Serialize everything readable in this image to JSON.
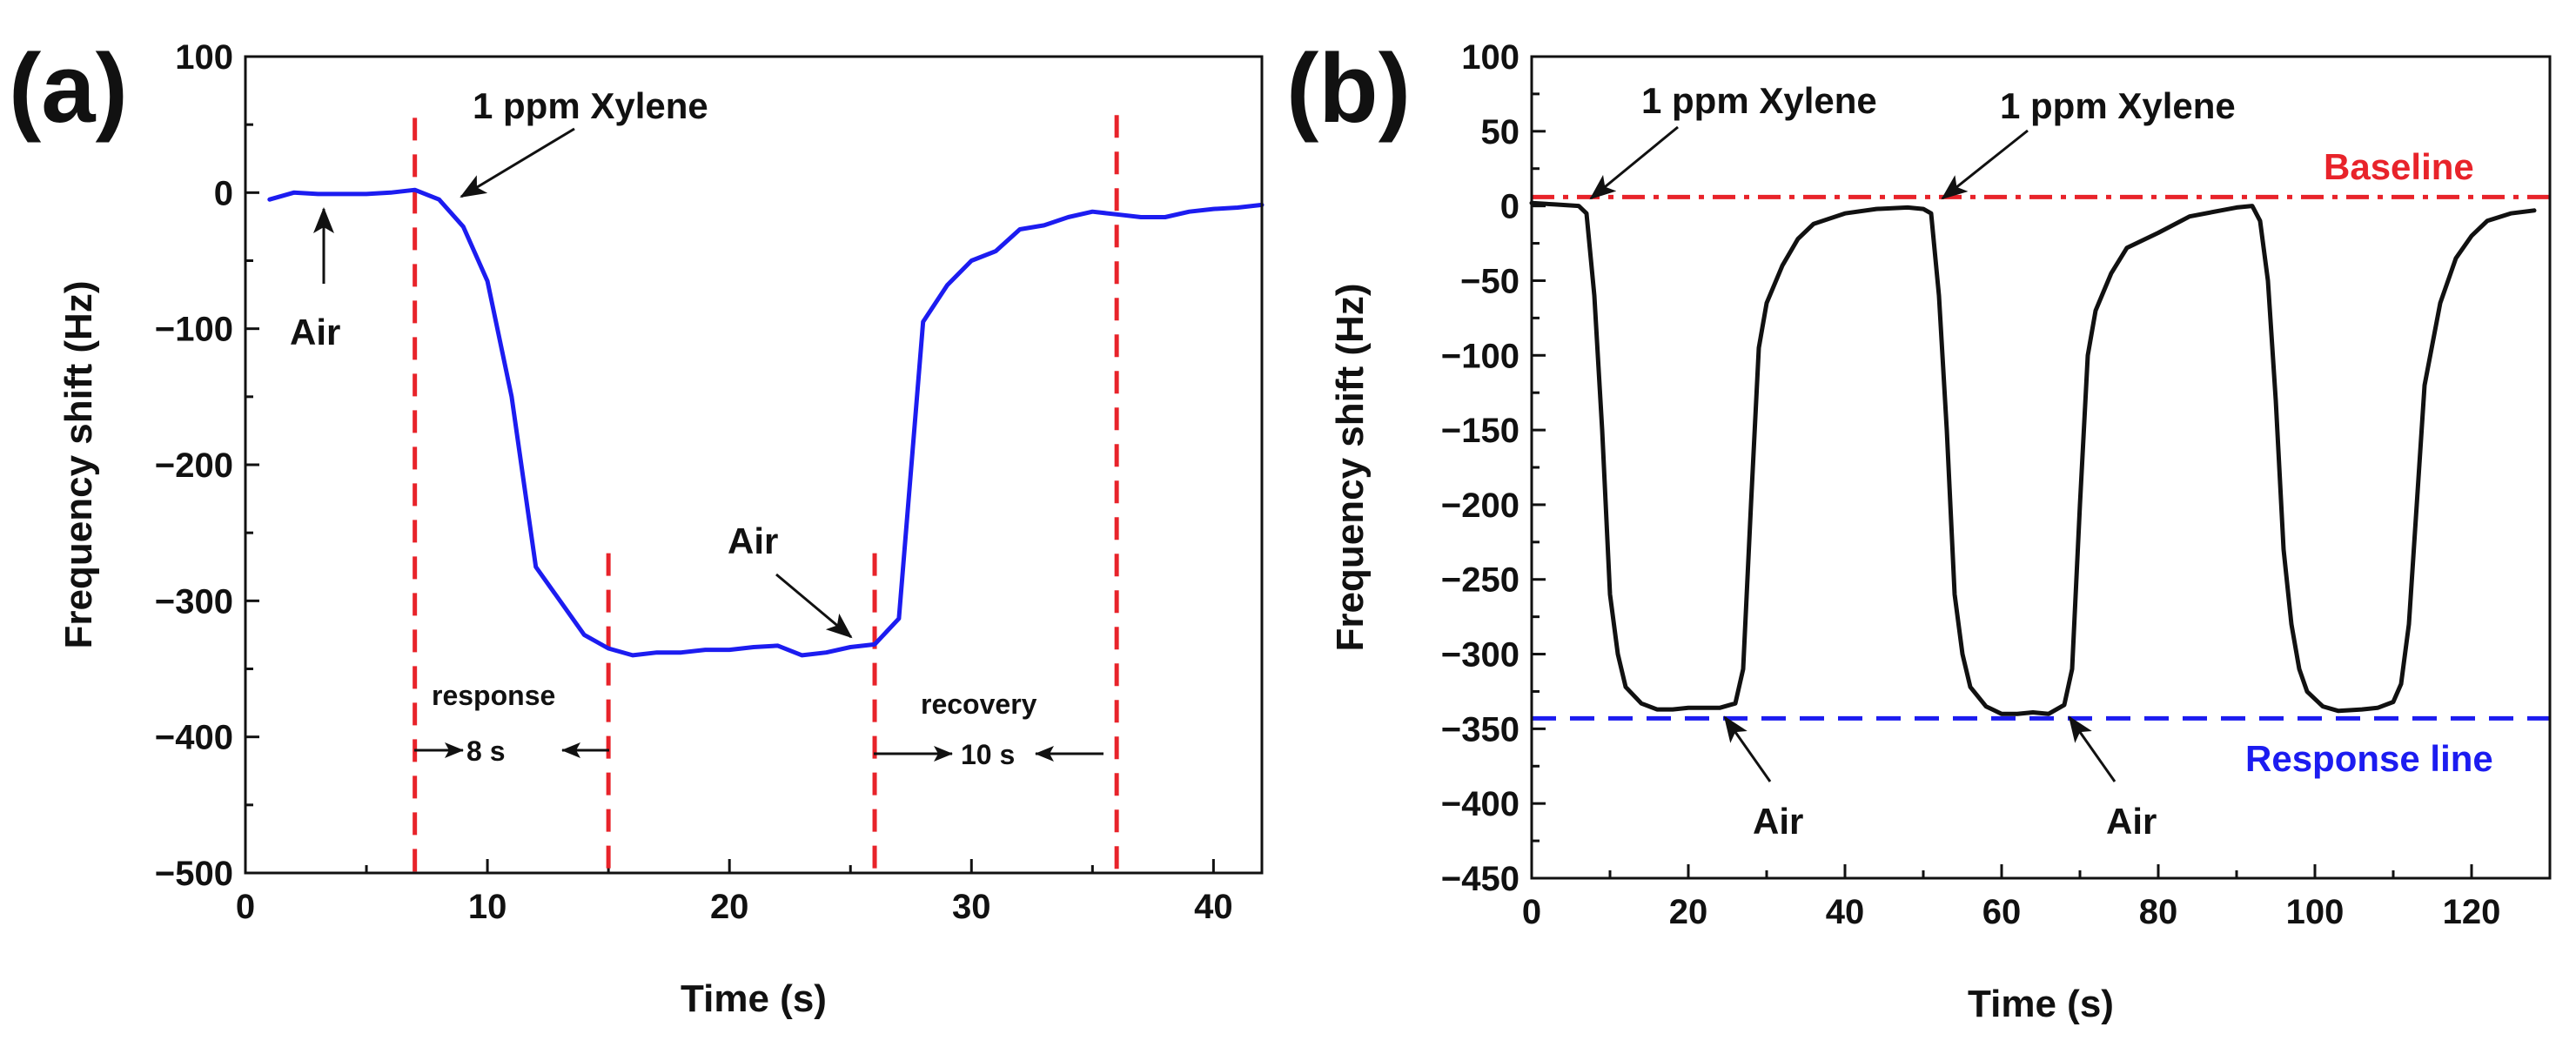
{
  "chart_data": [
    {
      "panel": "(a)",
      "type": "line",
      "xlabel": "Time (s)",
      "ylabel": "Frequency shift (Hz)",
      "xlim": [
        0,
        42
      ],
      "ylim": [
        -500,
        100
      ],
      "xticks": [
        0,
        10,
        20,
        30,
        40
      ],
      "yticks": [
        100,
        0,
        -100,
        -200,
        -300,
        -400,
        -500
      ],
      "ytick_labels": [
        "100",
        "0",
        "−100",
        "−200",
        "−300",
        "−400",
        "−500"
      ],
      "series": [
        {
          "name": "frequency shift",
          "color": "#1c1cf0",
          "x": [
            1,
            2,
            3,
            4,
            5,
            6,
            7,
            8,
            9,
            10,
            11,
            12,
            13,
            14,
            15,
            16,
            17,
            18,
            19,
            20,
            21,
            22,
            23,
            24,
            25,
            26,
            27,
            28,
            29,
            30,
            31,
            32,
            33,
            34,
            35,
            36,
            37,
            38,
            39,
            40,
            41,
            42
          ],
          "y": [
            -5,
            0,
            -1,
            -1,
            -1,
            0,
            2,
            -5,
            -25,
            -65,
            -150,
            -275,
            -300,
            -325,
            -335,
            -340,
            -338,
            -338,
            -336,
            -336,
            -334,
            -333,
            -340,
            -338,
            -334,
            -332,
            -313,
            -95,
            -68,
            -50,
            -43,
            -27,
            -24,
            -18,
            -14,
            -16,
            -18,
            -18,
            -14,
            -12,
            -11,
            -9
          ]
        }
      ],
      "vlines": [
        {
          "x": 7,
          "ymax": 55
        },
        {
          "x": 15,
          "ymax": -265
        },
        {
          "x": 26,
          "ymax": -265
        },
        {
          "x": 36,
          "ymax": 57
        }
      ],
      "annotations": {
        "xylene": "1 ppm Xylene",
        "air_left": "Air",
        "air_mid": "Air",
        "response": "response",
        "response_time": "8 s",
        "recovery": "recovery",
        "recovery_time": "10 s"
      }
    },
    {
      "panel": "(b)",
      "type": "line",
      "xlabel": "Time (s)",
      "ylabel": "Frequency shift (Hz)",
      "xlim": [
        0,
        130
      ],
      "ylim": [
        -450,
        100
      ],
      "xticks": [
        0,
        20,
        40,
        60,
        80,
        100,
        120
      ],
      "yticks": [
        100,
        50,
        0,
        -50,
        -100,
        -150,
        -200,
        -250,
        -300,
        -350,
        -400,
        -450
      ],
      "ytick_labels": [
        "100",
        "50",
        "0",
        "−50",
        "−100",
        "−150",
        "−200",
        "−250",
        "−300",
        "−350",
        "−400",
        "−450"
      ],
      "series": [
        {
          "name": "frequency shift",
          "color": "#111111",
          "x": [
            0,
            3,
            6,
            7,
            8,
            9,
            10,
            11,
            12,
            14,
            16,
            18,
            20,
            24,
            26,
            27,
            28,
            29,
            30,
            32,
            34,
            36,
            40,
            44,
            48,
            50,
            51,
            52,
            53,
            54,
            55,
            56,
            58,
            60,
            62,
            64,
            66,
            68,
            69,
            70,
            71,
            72,
            74,
            76,
            80,
            84,
            88,
            90,
            92,
            93,
            94,
            95,
            96,
            97,
            98,
            99,
            101,
            103,
            106,
            108,
            110,
            111,
            112,
            113,
            114,
            116,
            118,
            120,
            122,
            125,
            128
          ],
          "y": [
            2,
            1,
            0,
            -5,
            -60,
            -150,
            -260,
            -300,
            -322,
            -333,
            -337,
            -337,
            -336,
            -336,
            -333,
            -310,
            -200,
            -95,
            -65,
            -40,
            -22,
            -12,
            -5,
            -2,
            -1,
            -2,
            -5,
            -60,
            -150,
            -260,
            -300,
            -322,
            -335,
            -340,
            -340,
            -339,
            -340,
            -334,
            -310,
            -200,
            -100,
            -70,
            -45,
            -28,
            -18,
            -7,
            -3,
            -1,
            0,
            -10,
            -50,
            -130,
            -230,
            -280,
            -310,
            -325,
            -335,
            -338,
            -337,
            -336,
            -332,
            -320,
            -280,
            -200,
            -120,
            -65,
            -35,
            -20,
            -10,
            -5,
            -3
          ]
        }
      ],
      "baseline": {
        "label": "Baseline",
        "y": 6,
        "color": "#e8232a"
      },
      "response_line": {
        "label": "Response line",
        "y": -343,
        "color": "#1c1cf0"
      },
      "annotations": {
        "xylene_1": "1 ppm Xylene",
        "xylene_2": "1 ppm Xylene",
        "air_1": "Air",
        "air_2": "Air"
      }
    }
  ]
}
